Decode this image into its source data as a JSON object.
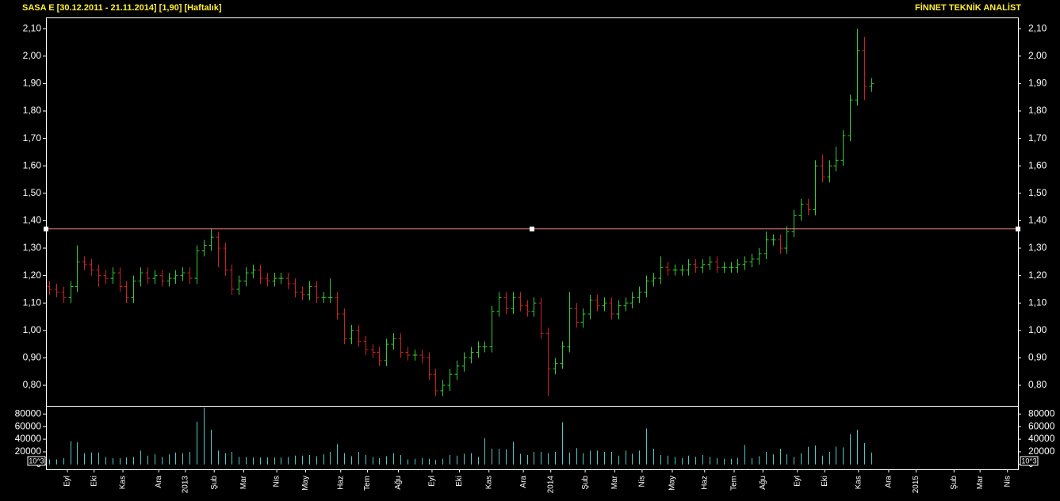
{
  "chart_data": [
    {
      "type": "ohlc",
      "title": "SASA  E  [30.12.2011 - 21.11.2014]  [1,90]  [Haftalık]",
      "brand": "FİNNET TEKNİK ANALİST",
      "xlim": [
        -0.45,
        137.9
      ],
      "xticks": [
        {
          "value": 2.6,
          "label": "Eyl"
        },
        {
          "value": 6.4,
          "label": "Eki"
        },
        {
          "value": 10.5,
          "label": "Kas"
        },
        {
          "value": 15.6,
          "label": "Ara"
        },
        19.4,
        {
          "value": 23.5,
          "label": "Şub"
        },
        {
          "value": 27.7,
          "label": "Mar"
        },
        {
          "value": 32.4,
          "label": "Nis"
        },
        {
          "value": 36.5,
          "label": "May"
        },
        {
          "value": 41.5,
          "label": "Haz"
        },
        {
          "value": 45.3,
          "label": "Tem"
        },
        {
          "value": 49.7,
          "label": "Ağu"
        },
        {
          "value": 54.5,
          "label": "Eyl"
        },
        {
          "value": 58.4,
          "label": "Eki"
        },
        {
          "value": 62.6,
          "label": "Kas"
        },
        {
          "value": 67.5,
          "label": "Ara"
        },
        71.4,
        {
          "value": 76.3,
          "label": "Şub"
        },
        {
          "value": 80.5,
          "label": "Mar"
        },
        {
          "value": 84.4,
          "label": "Nis"
        },
        {
          "value": 88.7,
          "label": "May"
        },
        {
          "value": 93.3,
          "label": "Haz"
        },
        {
          "value": 97.5,
          "label": "Tem"
        },
        {
          "value": 101.6,
          "label": "Ağu"
        },
        {
          "value": 106.5,
          "label": "Eyl"
        },
        {
          "value": 110.4,
          "label": "Eki"
        },
        {
          "value": 115.2,
          "label": "Kas"
        },
        {
          "value": 119.5,
          "label": "Ara"
        },
        123.4,
        {
          "value": 128.8,
          "label": "Şub"
        },
        {
          "value": 132.5,
          "label": "Mar"
        },
        {
          "value": 136.4,
          "label": "Nis"
        }
      ],
      "xtick_labels_for_years": [
        {
          "value": 19.4,
          "label": "2013"
        },
        {
          "value": 71.4,
          "label": "2014"
        },
        {
          "value": 123.4,
          "label": "2015"
        }
      ],
      "ylim": [
        0.725,
        2.141
      ],
      "yticks": [
        {
          "value": 0.8,
          "label": "0,80"
        },
        {
          "value": 0.9,
          "label": "0,90"
        },
        {
          "value": 1.0,
          "label": "1,00"
        },
        {
          "value": 1.1,
          "label": "1,10"
        },
        {
          "value": 1.2,
          "label": "1,20"
        },
        {
          "value": 1.3,
          "label": "1,30"
        },
        {
          "value": 1.4,
          "label": "1,40"
        },
        {
          "value": 1.5,
          "label": "1,50"
        },
        {
          "value": 1.6,
          "label": "1,60"
        },
        {
          "value": 1.7,
          "label": "1,70"
        },
        {
          "value": 1.8,
          "label": "1,80"
        },
        {
          "value": 1.9,
          "label": "1,90"
        },
        {
          "value": 2.0,
          "label": "2,00"
        },
        {
          "value": 2.1,
          "label": "2,10"
        }
      ],
      "up_color": "#33cc33",
      "down_color": "#cc2222",
      "reference_line": 1.37,
      "reference_color": "#f08080",
      "open": [
        1.16,
        1.15,
        1.14,
        1.12,
        1.16,
        1.25,
        1.24,
        1.22,
        1.2,
        1.19,
        1.21,
        1.16,
        1.12,
        1.18,
        1.21,
        1.19,
        1.2,
        1.18,
        1.19,
        1.2,
        1.21,
        1.19,
        1.29,
        1.31,
        1.34,
        1.3,
        1.22,
        1.15,
        1.18,
        1.21,
        1.22,
        1.19,
        1.18,
        1.19,
        1.19,
        1.17,
        1.14,
        1.13,
        1.16,
        1.12,
        1.12,
        1.12,
        1.06,
        0.97,
        1.0,
        0.96,
        0.93,
        0.92,
        0.89,
        0.95,
        0.97,
        0.92,
        0.91,
        0.91,
        0.9,
        0.84,
        0.78,
        0.8,
        0.84,
        0.87,
        0.9,
        0.92,
        0.94,
        0.94,
        1.07,
        1.12,
        1.08,
        1.12,
        1.09,
        1.07,
        1.1,
        0.99,
        0.86,
        0.88,
        0.94,
        1.08,
        1.03,
        1.06,
        1.11,
        1.09,
        1.1,
        1.06,
        1.09,
        1.1,
        1.12,
        1.14,
        1.18,
        1.19,
        1.23,
        1.22,
        1.22,
        1.22,
        1.24,
        1.23,
        1.24,
        1.25,
        1.23,
        1.23,
        1.23,
        1.24,
        1.25,
        1.26,
        1.28,
        1.33,
        1.33,
        1.3,
        1.36,
        1.42,
        1.46,
        1.44,
        1.6,
        1.56,
        1.6,
        1.62,
        1.71,
        1.84,
        2.02,
        1.89
      ],
      "high": [
        1.18,
        1.17,
        1.16,
        1.18,
        1.31,
        1.27,
        1.26,
        1.24,
        1.22,
        1.23,
        1.23,
        1.18,
        1.2,
        1.23,
        1.23,
        1.22,
        1.22,
        1.21,
        1.22,
        1.23,
        1.23,
        1.31,
        1.33,
        1.37,
        1.36,
        1.32,
        1.24,
        1.2,
        1.23,
        1.24,
        1.24,
        1.21,
        1.21,
        1.21,
        1.21,
        1.19,
        1.16,
        1.18,
        1.18,
        1.14,
        1.19,
        1.14,
        1.08,
        1.02,
        1.02,
        0.98,
        0.95,
        0.94,
        0.97,
        0.99,
        0.99,
        0.94,
        0.93,
        0.93,
        0.92,
        0.86,
        0.82,
        0.86,
        0.89,
        0.92,
        0.94,
        0.96,
        0.96,
        1.09,
        1.14,
        1.14,
        1.14,
        1.14,
        1.11,
        1.12,
        1.12,
        1.01,
        0.9,
        0.96,
        1.14,
        1.1,
        1.08,
        1.13,
        1.13,
        1.12,
        1.12,
        1.11,
        1.12,
        1.14,
        1.16,
        1.2,
        1.21,
        1.27,
        1.25,
        1.24,
        1.24,
        1.26,
        1.26,
        1.26,
        1.27,
        1.27,
        1.25,
        1.25,
        1.26,
        1.27,
        1.28,
        1.3,
        1.36,
        1.35,
        1.35,
        1.38,
        1.44,
        1.48,
        1.48,
        1.62,
        1.64,
        1.62,
        1.67,
        1.73,
        1.86,
        2.1,
        2.07,
        1.92
      ],
      "low": [
        1.13,
        1.12,
        1.1,
        1.1,
        1.14,
        1.22,
        1.2,
        1.16,
        1.17,
        1.17,
        1.14,
        1.1,
        1.1,
        1.16,
        1.17,
        1.17,
        1.16,
        1.16,
        1.17,
        1.18,
        1.17,
        1.17,
        1.27,
        1.29,
        1.23,
        1.2,
        1.13,
        1.13,
        1.16,
        1.19,
        1.17,
        1.16,
        1.16,
        1.17,
        1.15,
        1.12,
        1.11,
        1.11,
        1.1,
        1.1,
        1.1,
        1.04,
        0.95,
        0.95,
        0.94,
        0.91,
        0.9,
        0.87,
        0.87,
        0.93,
        0.9,
        0.89,
        0.89,
        0.88,
        0.82,
        0.76,
        0.76,
        0.78,
        0.82,
        0.85,
        0.88,
        0.9,
        0.92,
        0.92,
        1.05,
        1.06,
        1.06,
        1.07,
        1.05,
        1.05,
        0.97,
        0.76,
        0.84,
        0.86,
        0.92,
        1.01,
        1.01,
        1.04,
        1.07,
        1.07,
        1.04,
        1.04,
        1.07,
        1.08,
        1.1,
        1.12,
        1.16,
        1.17,
        1.2,
        1.2,
        1.2,
        1.2,
        1.21,
        1.21,
        1.22,
        1.21,
        1.21,
        1.21,
        1.21,
        1.22,
        1.23,
        1.24,
        1.26,
        1.31,
        1.28,
        1.28,
        1.34,
        1.4,
        1.42,
        1.42,
        1.54,
        1.54,
        1.58,
        1.6,
        1.69,
        1.82,
        1.84,
        1.87
      ],
      "close": [
        1.15,
        1.14,
        1.12,
        1.16,
        1.25,
        1.24,
        1.22,
        1.2,
        1.19,
        1.21,
        1.16,
        1.12,
        1.18,
        1.21,
        1.19,
        1.2,
        1.18,
        1.19,
        1.2,
        1.21,
        1.19,
        1.29,
        1.31,
        1.34,
        1.3,
        1.22,
        1.15,
        1.18,
        1.21,
        1.22,
        1.19,
        1.18,
        1.19,
        1.19,
        1.17,
        1.14,
        1.13,
        1.16,
        1.12,
        1.12,
        1.12,
        1.06,
        0.97,
        1.0,
        0.96,
        0.93,
        0.92,
        0.89,
        0.95,
        0.97,
        0.92,
        0.91,
        0.91,
        0.9,
        0.84,
        0.78,
        0.8,
        0.84,
        0.87,
        0.9,
        0.92,
        0.94,
        0.94,
        1.07,
        1.12,
        1.08,
        1.12,
        1.09,
        1.07,
        1.1,
        0.99,
        0.86,
        0.88,
        0.94,
        1.08,
        1.03,
        1.06,
        1.11,
        1.09,
        1.1,
        1.06,
        1.09,
        1.1,
        1.12,
        1.14,
        1.18,
        1.19,
        1.23,
        1.22,
        1.22,
        1.22,
        1.24,
        1.23,
        1.24,
        1.25,
        1.23,
        1.23,
        1.23,
        1.24,
        1.25,
        1.26,
        1.28,
        1.33,
        1.33,
        1.3,
        1.36,
        1.42,
        1.46,
        1.44,
        1.6,
        1.56,
        1.6,
        1.62,
        1.71,
        1.84,
        2.02,
        1.89,
        1.9
      ]
    },
    {
      "type": "bar",
      "unit_label": "10^3",
      "ylim": [
        -7700,
        92900
      ],
      "yticks": [
        0,
        20000,
        40000,
        60000,
        80000
      ],
      "color": "#4ec9c9",
      "values": [
        8000,
        8000,
        10000,
        37000,
        35000,
        18000,
        19000,
        19000,
        12000,
        10000,
        10000,
        11000,
        12000,
        22000,
        14000,
        16000,
        12000,
        16000,
        19000,
        18000,
        20000,
        68000,
        90000,
        55000,
        22000,
        18000,
        20000,
        12000,
        12000,
        11000,
        11000,
        11000,
        11000,
        11000,
        12000,
        14000,
        14000,
        15000,
        13000,
        16000,
        20000,
        32000,
        18000,
        13000,
        20000,
        15000,
        12000,
        10000,
        13000,
        18000,
        15000,
        8000,
        9000,
        10000,
        9000,
        7000,
        9000,
        15000,
        14000,
        17000,
        18000,
        12000,
        42000,
        25000,
        25000,
        24000,
        36000,
        17000,
        15000,
        20000,
        20000,
        18000,
        20000,
        67000,
        19000,
        26000,
        18000,
        22000,
        22000,
        20000,
        20000,
        14000,
        22000,
        17000,
        22000,
        57000,
        25000,
        15000,
        14000,
        12000,
        10000,
        14000,
        12000,
        15000,
        12000,
        10000,
        9000,
        9000,
        10000,
        31000,
        10000,
        13000,
        20000,
        16000,
        25000,
        16000,
        12000,
        18000,
        28000,
        30000,
        14000,
        20000,
        28000,
        27000,
        48000,
        55000,
        34000,
        19000
      ]
    }
  ]
}
